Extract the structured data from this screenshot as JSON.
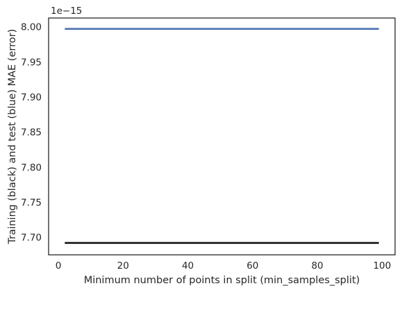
{
  "chart_data": {
    "type": "line",
    "title": "",
    "xlabel": "Minimum number of points in split (min_samples_split)",
    "ylabel": "Training (black) and test (blue) MAE (error)",
    "y_offset_text": "1e−15",
    "xlim": [
      -3,
      104
    ],
    "ylim": [
      7.675,
      8.0125
    ],
    "x_ticks": [
      0,
      20,
      40,
      60,
      80,
      100
    ],
    "x_tick_labels": [
      "0",
      "20",
      "40",
      "60",
      "80",
      "100"
    ],
    "y_ticks": [
      7.7,
      7.75,
      7.8,
      7.85,
      7.9,
      7.95,
      8.0
    ],
    "y_tick_labels": [
      "7.70",
      "7.75",
      "7.80",
      "7.85",
      "7.90",
      "7.95",
      "8.00"
    ],
    "grid": false,
    "series": [
      {
        "color": "#4c72b0",
        "x": [
          2,
          99
        ],
        "y": [
          7.997,
          7.997
        ]
      },
      {
        "color": "#111111",
        "x": [
          2,
          99
        ],
        "y": [
          7.692,
          7.692
        ]
      }
    ]
  }
}
